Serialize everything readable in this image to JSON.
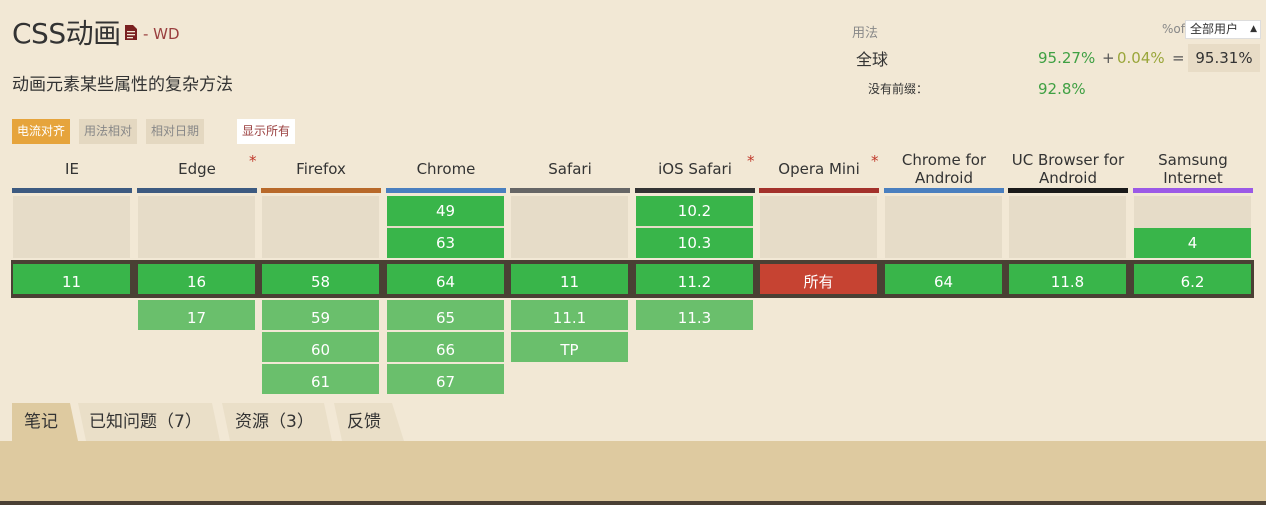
{
  "header": {
    "title": "CSS动画",
    "status": "- WD",
    "description": "动画元素某些属性的复杂方法",
    "doc_icon": "document-icon"
  },
  "usage": {
    "label": "用法",
    "pct_of": "%of",
    "user_select": "全部用户",
    "global_label": "全球",
    "supported": "95.27%",
    "plus": "+",
    "partial": "0.04%",
    "equals": "=",
    "total": "95.31%",
    "unprefixed_label": "没有前缀：",
    "unprefixed": "92.8%"
  },
  "filters": {
    "align": "电流对齐",
    "usage_rel": "用法相对",
    "date_rel": "相对日期",
    "show_all": "显示所有"
  },
  "browsers": [
    {
      "name": "IE",
      "color": "#3d5a80",
      "star": false,
      "past": [],
      "current": "11",
      "future": []
    },
    {
      "name": "Edge",
      "color": "#3d5a80",
      "star": true,
      "past": [],
      "current": "16",
      "future": [
        "17"
      ]
    },
    {
      "name": "Firefox",
      "color": "#b8692a",
      "star": false,
      "past": [],
      "current": "58",
      "future": [
        "59",
        "60",
        "61"
      ]
    },
    {
      "name": "Chrome",
      "color": "#4a7fbf",
      "star": false,
      "past": [
        "49",
        "63"
      ],
      "current": "64",
      "future": [
        "65",
        "66",
        "67"
      ]
    },
    {
      "name": "Safari",
      "color": "#666666",
      "star": false,
      "past": [],
      "current": "11",
      "future": [
        "11.1",
        "TP"
      ]
    },
    {
      "name": "iOS Safari",
      "color": "#333333",
      "star": true,
      "past": [
        "10.2",
        "10.3"
      ],
      "current": "11.2",
      "future": [
        "11.3"
      ]
    },
    {
      "name": "Opera Mini",
      "color": "#a3312b",
      "star": true,
      "past": [],
      "current": "所有",
      "current_unsupported": true,
      "future": []
    },
    {
      "name": "Chrome for Android",
      "color": "#4a7fbf",
      "star": false,
      "past": [],
      "current": "64",
      "future": []
    },
    {
      "name": "UC Browser for Android",
      "color": "#1a1a1a",
      "star": false,
      "past": [],
      "current": "11.8",
      "future": []
    },
    {
      "name": "Samsung Internet",
      "color": "#9b59e6",
      "star": false,
      "past": [
        "4"
      ],
      "current": "6.2",
      "future": []
    }
  ],
  "star_symbol": "*",
  "tabs": [
    {
      "label": "笔记",
      "active": true
    },
    {
      "label": "已知问题（7）",
      "active": false
    },
    {
      "label": "资源（3）",
      "active": false
    },
    {
      "label": "反馈",
      "active": false
    }
  ]
}
